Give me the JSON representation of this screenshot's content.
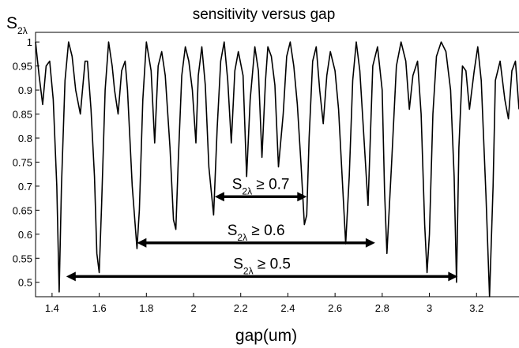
{
  "chart_data": {
    "type": "line",
    "title": "sensitivity versus gap",
    "xlabel": "gap(um)",
    "ylabel": "S_{2λ}",
    "ylabel_main": "S",
    "ylabel_sub": "2λ",
    "xlim": [
      1.33,
      3.38
    ],
    "ylim": [
      0.47,
      1.02
    ],
    "xticks": [
      1.4,
      1.6,
      1.8,
      2,
      2.2,
      2.4,
      2.6,
      2.8,
      3,
      3.2
    ],
    "xtick_labels": [
      "1.4",
      "1.6",
      "1.8",
      "2",
      "2.2",
      "2.4",
      "2.6",
      "2.8",
      "3",
      "3.2"
    ],
    "yticks": [
      0.5,
      0.55,
      0.6,
      0.65,
      0.7,
      0.75,
      0.8,
      0.85,
      0.9,
      0.95,
      1
    ],
    "ytick_labels": [
      "0.5",
      "0.55",
      "0.6",
      "0.65",
      "0.7",
      "0.75",
      "0.8",
      "0.85",
      "0.9",
      "0.95",
      "1"
    ],
    "grid": false,
    "line_color": "#000000",
    "series": [
      {
        "x": [
          1.33,
          1.345,
          1.36,
          1.375,
          1.39,
          1.405,
          1.42,
          1.43,
          1.44,
          1.455,
          1.47,
          1.485,
          1.5,
          1.52,
          1.54,
          1.55,
          1.565,
          1.58,
          1.59,
          1.6,
          1.61,
          1.625,
          1.64,
          1.655,
          1.665,
          1.68,
          1.695,
          1.71,
          1.72,
          1.74,
          1.76,
          1.77,
          1.785,
          1.8,
          1.82,
          1.835,
          1.85,
          1.865,
          1.88,
          1.9,
          1.915,
          1.925,
          1.935,
          1.95,
          1.965,
          1.98,
          1.995,
          2.01,
          2.02,
          2.035,
          2.05,
          2.065,
          2.085,
          2.1,
          2.115,
          2.13,
          2.145,
          2.16,
          2.175,
          2.19,
          2.21,
          2.225,
          2.24,
          2.26,
          2.275,
          2.29,
          2.305,
          2.315,
          2.33,
          2.345,
          2.36,
          2.38,
          2.395,
          2.41,
          2.425,
          2.44,
          2.455,
          2.47,
          2.48,
          2.49,
          2.505,
          2.52,
          2.535,
          2.55,
          2.565,
          2.58,
          2.6,
          2.615,
          2.63,
          2.645,
          2.66,
          2.675,
          2.69,
          2.705,
          2.72,
          2.74,
          2.76,
          2.78,
          2.8,
          2.81,
          2.82,
          2.84,
          2.86,
          2.88,
          2.9,
          2.915,
          2.93,
          2.95,
          2.965,
          2.98,
          2.99,
          3.0,
          3.015,
          3.03,
          3.05,
          3.07,
          3.09,
          3.105,
          3.115,
          3.125,
          3.14,
          3.155,
          3.17,
          3.19,
          3.205,
          3.22,
          3.24,
          3.255,
          3.27,
          3.28,
          3.3,
          3.32,
          3.335,
          3.35,
          3.365,
          3.38
        ],
        "y": [
          1.0,
          0.93,
          0.87,
          0.95,
          0.96,
          0.88,
          0.7,
          0.48,
          0.7,
          0.92,
          1.0,
          0.97,
          0.9,
          0.85,
          0.96,
          0.96,
          0.86,
          0.72,
          0.56,
          0.52,
          0.66,
          0.9,
          1.0,
          0.95,
          0.9,
          0.85,
          0.94,
          0.96,
          0.9,
          0.7,
          0.57,
          0.65,
          0.88,
          1.0,
          0.94,
          0.79,
          0.95,
          0.98,
          0.93,
          0.78,
          0.63,
          0.61,
          0.75,
          0.93,
          0.99,
          0.96,
          0.9,
          0.79,
          0.93,
          0.99,
          0.91,
          0.74,
          0.64,
          0.82,
          0.96,
          1.0,
          0.92,
          0.79,
          0.94,
          0.98,
          0.93,
          0.72,
          0.88,
          0.99,
          0.94,
          0.76,
          0.92,
          0.99,
          0.97,
          0.91,
          0.74,
          0.85,
          0.97,
          1.0,
          0.95,
          0.87,
          0.75,
          0.62,
          0.64,
          0.8,
          0.96,
          0.99,
          0.9,
          0.83,
          0.93,
          0.98,
          0.94,
          0.86,
          0.72,
          0.58,
          0.72,
          0.92,
          1.0,
          0.94,
          0.82,
          0.66,
          0.95,
          0.99,
          0.9,
          0.69,
          0.56,
          0.75,
          0.95,
          1.0,
          0.96,
          0.86,
          0.93,
          0.96,
          0.85,
          0.62,
          0.52,
          0.6,
          0.85,
          0.97,
          1.0,
          0.98,
          0.9,
          0.72,
          0.5,
          0.78,
          0.95,
          0.94,
          0.86,
          0.94,
          0.99,
          0.92,
          0.68,
          0.47,
          0.7,
          0.92,
          0.96,
          0.88,
          0.84,
          0.94,
          0.96,
          0.86
        ]
      }
    ],
    "annotations": [
      {
        "text_main": "S",
        "text_sub": "2λ",
        "text_rest": " ≥ 0.7",
        "x_start": 2.09,
        "x_end": 2.48,
        "y": 0.678
      },
      {
        "text_main": "S",
        "text_sub": "2λ",
        "text_rest": " ≥   0.6",
        "x_start": 1.76,
        "x_end": 2.77,
        "y": 0.582
      },
      {
        "text_main": "S",
        "text_sub": "2λ",
        "text_rest": " ≥   0.5",
        "x_start": 1.46,
        "x_end": 3.12,
        "y": 0.512
      }
    ]
  }
}
